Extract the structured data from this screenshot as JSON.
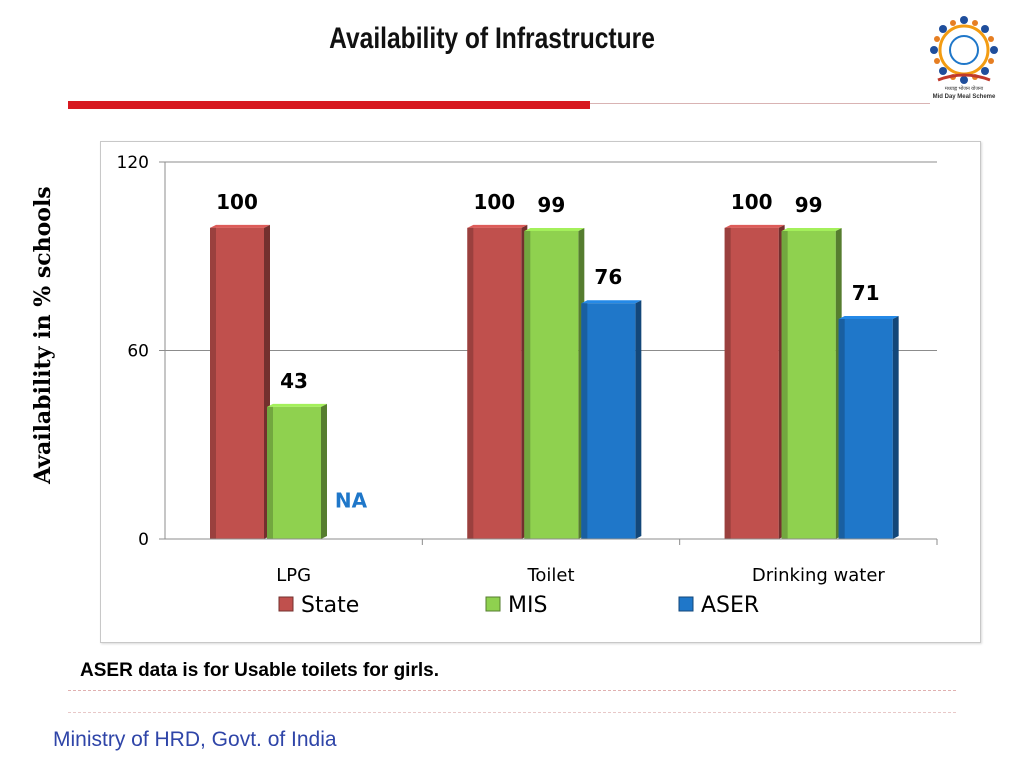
{
  "page": {
    "title": "Availability of Infrastructure",
    "logo_caption_line1": "मध्याह्न भोजन योजना",
    "logo_caption_line2": "Mid Day Meal Scheme",
    "note": "ASER data is for Usable toilets for girls.",
    "footer": "Ministry of HRD, Govt. of India",
    "y_axis_label": "Availability in % schools"
  },
  "colors": {
    "State": "#c0504d",
    "MIS": "#8fd14f",
    "ASER": "#1f77c9",
    "title_rule": "#d71920",
    "footer_text": "#2f45a8",
    "na_text": "#1f77c9"
  },
  "chart_data": {
    "type": "bar",
    "style": "3d-clustered",
    "title": "",
    "xlabel": "",
    "ylabel": "Availability in % schools",
    "categories": [
      "LPG",
      "Toilet",
      "Drinking water"
    ],
    "series": [
      {
        "name": "State",
        "values": [
          100,
          100,
          100
        ]
      },
      {
        "name": "MIS",
        "values": [
          43,
          99,
          99
        ]
      },
      {
        "name": "ASER",
        "values": [
          null,
          76,
          71
        ]
      }
    ],
    "data_labels": [
      [
        "100",
        "100",
        "100"
      ],
      [
        "43",
        "99",
        "99"
      ],
      [
        "NA",
        "76",
        "71"
      ]
    ],
    "ylim": [
      0,
      120
    ],
    "yticks": [
      "0",
      "60",
      "120"
    ],
    "grid": true,
    "legend": "bottom"
  }
}
